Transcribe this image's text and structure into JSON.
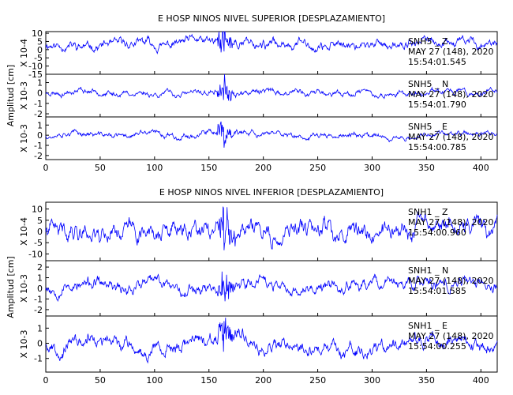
{
  "chart_data": [
    {
      "type": "line",
      "title": "E HOSP NINOS NIVEL SUPERIOR [DESPLAZAMIENTO]",
      "ylabel": "Amplitud [cm]",
      "xlim": [
        0,
        415
      ],
      "xticks": [
        0,
        50,
        100,
        150,
        200,
        250,
        300,
        350,
        400
      ],
      "line_color": "#0000ff",
      "panels": [
        {
          "scale_label": "X 10-4",
          "yticks": [
            "10",
            "5",
            "0",
            "-5",
            "-10",
            "-15"
          ],
          "ylim": [
            -15,
            11
          ],
          "amplitude": 3.5,
          "offset": 3.5,
          "burst": 4,
          "seed": 11,
          "annotation": [
            "SNH5 _ Z",
            "MAY 27 (148), 2020",
            "15:54:01.545"
          ]
        },
        {
          "scale_label": "X 10-3",
          "yticks": [
            "1",
            "0",
            "-1",
            "-2"
          ],
          "ylim": [
            -2.3,
            1.8
          ],
          "amplitude": 0.35,
          "offset": 0.0,
          "burst": 5,
          "seed": 23,
          "annotation": [
            "SNH5 _ N",
            "MAY 27 (148), 2020",
            "15:54:01.790"
          ]
        },
        {
          "scale_label": "X 10-3",
          "yticks": [
            "1",
            "0",
            "-1",
            "-2"
          ],
          "ylim": [
            -2.4,
            1.8
          ],
          "amplitude": 0.35,
          "offset": 0.0,
          "burst": 5,
          "seed": 37,
          "annotation": [
            "SNH5 _ E",
            "MAY 27 (148), 2020",
            "15:54:00.785"
          ]
        }
      ]
    },
    {
      "type": "line",
      "title": "E HOSP NINOS NIVEL INFERIOR [DESPLAZAMIENTO]",
      "ylabel": "Amplitud [cm]",
      "xlim": [
        0,
        415
      ],
      "xticks": [
        0,
        50,
        100,
        150,
        200,
        250,
        300,
        350,
        400
      ],
      "line_color": "#0000ff",
      "panels": [
        {
          "scale_label": "X 10-4",
          "yticks": [
            "10",
            "5",
            "0",
            "-5",
            "-10"
          ],
          "ylim": [
            -13,
            13
          ],
          "amplitude": 5.0,
          "offset": 0.0,
          "burst": 2.5,
          "seed": 41,
          "annotation": [
            "SNH1 _ Z",
            "MAY 27 (148), 2020",
            "15:54:00.960"
          ]
        },
        {
          "scale_label": "X 10-3",
          "yticks": [
            "2",
            "1",
            "0",
            "-1",
            "-2"
          ],
          "ylim": [
            -2.6,
            2.6
          ],
          "amplitude": 0.7,
          "offset": 0.3,
          "burst": 3,
          "seed": 53,
          "annotation": [
            "SNH1 _ N",
            "MAY 27 (148), 2020",
            "15:54:01.585"
          ]
        },
        {
          "scale_label": "X 10-3",
          "yticks": [
            "1",
            "0",
            "-1"
          ],
          "ylim": [
            -1.9,
            1.8
          ],
          "amplitude": 0.55,
          "offset": 0.0,
          "burst": 2.5,
          "seed": 67,
          "annotation": [
            "SNH1 _ E",
            "MAY 27 (148), 2020",
            "15:54:00.255"
          ]
        }
      ]
    }
  ]
}
